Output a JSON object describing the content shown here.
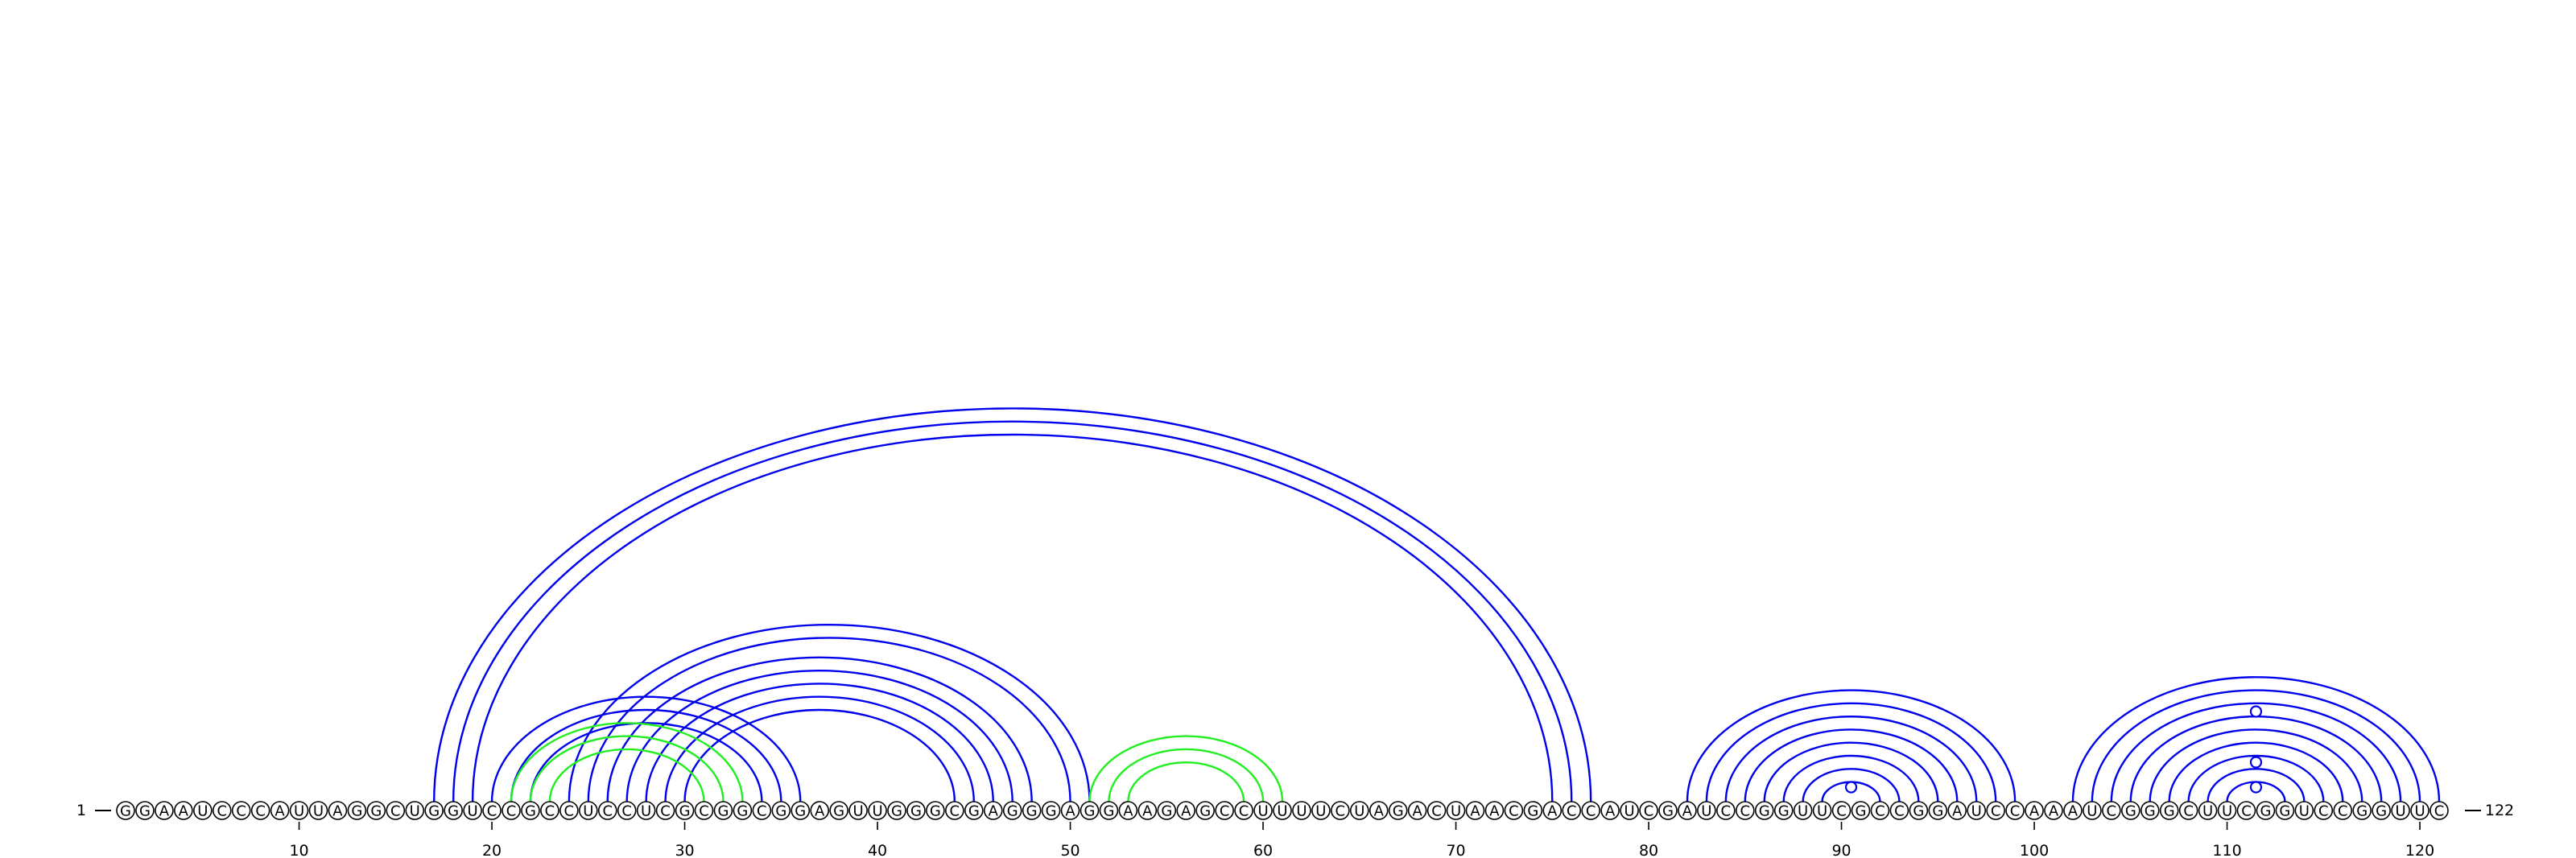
{
  "sequence": "GGAAUCCCAUUAGGCUGGUCCGCCUCCUCGCGGCGGAGUUGGGCGAGGGAGGAAGAGCCUUUUCUAGACUAACGACCAUCGAUCCGGUUCGCCGGAUCCAAAUCGGGCUUCGGUCCGGUUC",
  "start_label": "1",
  "end_label": "122",
  "tick_labels": [
    "10",
    "20",
    "30",
    "40",
    "50",
    "60",
    "70",
    "80",
    "90",
    "100",
    "110",
    "120"
  ],
  "colors": {
    "blue": "#0000ee",
    "green": "#22ee22",
    "node_fill": "#ffffff",
    "node_stroke": "#000000"
  },
  "arc_groups": [
    {
      "color": "blue",
      "pairs": [
        [
          17,
          77
        ],
        [
          18,
          76
        ],
        [
          19,
          75
        ]
      ]
    },
    {
      "color": "blue",
      "pairs": [
        [
          20,
          36
        ],
        [
          21,
          35
        ],
        [
          22,
          34
        ]
      ]
    },
    {
      "color": "blue",
      "pairs": [
        [
          24,
          51
        ],
        [
          25,
          50
        ],
        [
          26,
          48
        ],
        [
          27,
          47
        ],
        [
          28,
          46
        ],
        [
          29,
          45
        ],
        [
          30,
          44
        ]
      ]
    },
    {
      "color": "green",
      "pairs": [
        [
          21,
          33
        ],
        [
          22,
          32
        ],
        [
          23,
          31
        ]
      ]
    },
    {
      "color": "green",
      "pairs": [
        [
          51,
          61
        ],
        [
          52,
          60
        ],
        [
          53,
          59
        ]
      ]
    },
    {
      "color": "blue",
      "pairs": [
        [
          82,
          99
        ],
        [
          83,
          98
        ],
        [
          84,
          97
        ],
        [
          85,
          96
        ],
        [
          86,
          95
        ],
        [
          87,
          94
        ],
        [
          88,
          93
        ],
        [
          89,
          92
        ]
      ]
    },
    {
      "color": "blue",
      "pairs": [
        [
          102,
          121
        ],
        [
          103,
          120
        ],
        [
          104,
          119
        ],
        [
          105,
          118
        ],
        [
          106,
          117
        ],
        [
          107,
          116
        ],
        [
          108,
          115
        ],
        [
          109,
          114
        ],
        [
          110,
          113
        ]
      ]
    }
  ],
  "loop_markers": [
    90.5,
    111.5,
    111.5,
    111.5
  ]
}
